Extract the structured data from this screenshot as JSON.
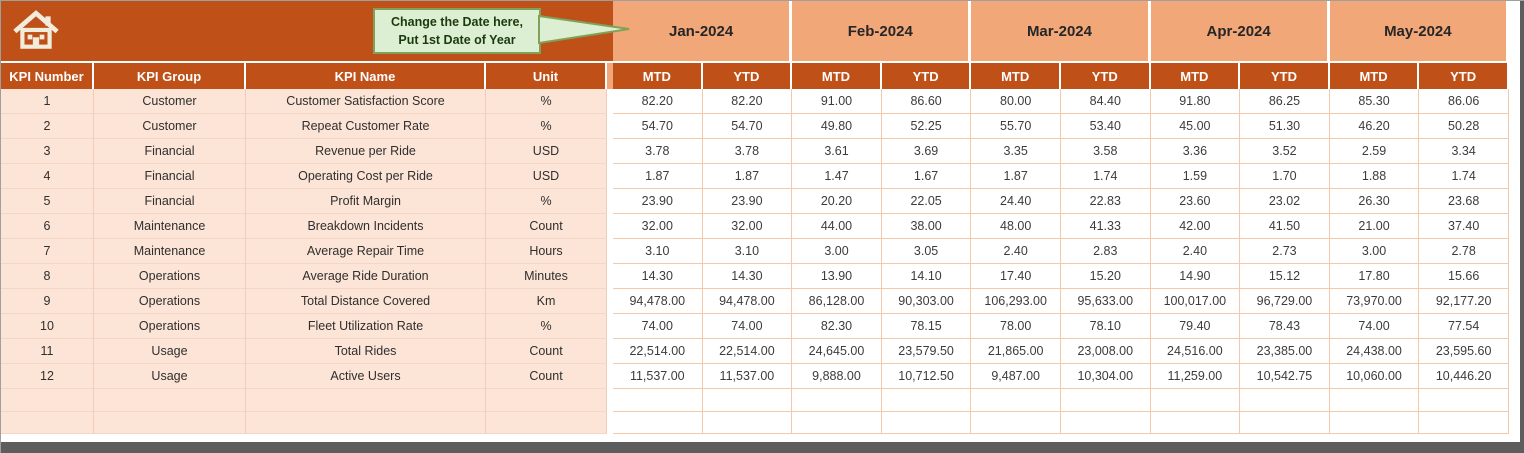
{
  "callout": {
    "line1": "Change the Date here,",
    "line2": "Put 1st Date of Year"
  },
  "months": [
    "Jan-2024",
    "Feb-2024",
    "Mar-2024",
    "Apr-2024",
    "May-2024"
  ],
  "sub_headers": [
    "MTD",
    "YTD"
  ],
  "columns": [
    "KPI Number",
    "KPI Group",
    "KPI Name",
    "Unit"
  ],
  "rows": [
    {
      "number": "1",
      "group": "Customer",
      "name": "Customer Satisfaction Score",
      "unit": "%",
      "values": [
        "82.20",
        "82.20",
        "91.00",
        "86.60",
        "80.00",
        "84.40",
        "91.80",
        "86.25",
        "85.30",
        "86.06"
      ]
    },
    {
      "number": "2",
      "group": "Customer",
      "name": "Repeat Customer Rate",
      "unit": "%",
      "values": [
        "54.70",
        "54.70",
        "49.80",
        "52.25",
        "55.70",
        "53.40",
        "45.00",
        "51.30",
        "46.20",
        "50.28"
      ]
    },
    {
      "number": "3",
      "group": "Financial",
      "name": "Revenue per Ride",
      "unit": "USD",
      "values": [
        "3.78",
        "3.78",
        "3.61",
        "3.69",
        "3.35",
        "3.58",
        "3.36",
        "3.52",
        "2.59",
        "3.34"
      ]
    },
    {
      "number": "4",
      "group": "Financial",
      "name": "Operating Cost per Ride",
      "unit": "USD",
      "values": [
        "1.87",
        "1.87",
        "1.47",
        "1.67",
        "1.87",
        "1.74",
        "1.59",
        "1.70",
        "1.88",
        "1.74"
      ]
    },
    {
      "number": "5",
      "group": "Financial",
      "name": "Profit Margin",
      "unit": "%",
      "values": [
        "23.90",
        "23.90",
        "20.20",
        "22.05",
        "24.40",
        "22.83",
        "23.60",
        "23.02",
        "26.30",
        "23.68"
      ]
    },
    {
      "number": "6",
      "group": "Maintenance",
      "name": "Breakdown Incidents",
      "unit": "Count",
      "values": [
        "32.00",
        "32.00",
        "44.00",
        "38.00",
        "48.00",
        "41.33",
        "42.00",
        "41.50",
        "21.00",
        "37.40"
      ]
    },
    {
      "number": "7",
      "group": "Maintenance",
      "name": "Average Repair Time",
      "unit": "Hours",
      "values": [
        "3.10",
        "3.10",
        "3.00",
        "3.05",
        "2.40",
        "2.83",
        "2.40",
        "2.73",
        "3.00",
        "2.78"
      ]
    },
    {
      "number": "8",
      "group": "Operations",
      "name": "Average Ride Duration",
      "unit": "Minutes",
      "values": [
        "14.30",
        "14.30",
        "13.90",
        "14.10",
        "17.40",
        "15.20",
        "14.90",
        "15.12",
        "17.80",
        "15.66"
      ]
    },
    {
      "number": "9",
      "group": "Operations",
      "name": "Total Distance Covered",
      "unit": "Km",
      "values": [
        "94,478.00",
        "94,478.00",
        "86,128.00",
        "90,303.00",
        "106,293.00",
        "95,633.00",
        "100,017.00",
        "96,729.00",
        "73,970.00",
        "92,177.20"
      ]
    },
    {
      "number": "10",
      "group": "Operations",
      "name": "Fleet Utilization Rate",
      "unit": "%",
      "values": [
        "74.00",
        "74.00",
        "82.30",
        "78.15",
        "78.00",
        "78.10",
        "79.40",
        "78.43",
        "74.00",
        "77.54"
      ]
    },
    {
      "number": "11",
      "group": "Usage",
      "name": "Total Rides",
      "unit": "Count",
      "values": [
        "22,514.00",
        "22,514.00",
        "24,645.00",
        "23,579.50",
        "21,865.00",
        "23,008.00",
        "24,516.00",
        "23,385.00",
        "24,438.00",
        "23,595.60"
      ]
    },
    {
      "number": "12",
      "group": "Usage",
      "name": "Active Users",
      "unit": "Count",
      "values": [
        "11,537.00",
        "11,537.00",
        "9,888.00",
        "10,712.50",
        "9,487.00",
        "10,304.00",
        "11,259.00",
        "10,542.75",
        "10,060.00",
        "10,446.20"
      ]
    }
  ],
  "empty_row_count": 2,
  "colors": {
    "rust": "#BF5018",
    "salmon": "#F2A779",
    "peach": "#FCE4D6",
    "grid_line": "#F3C9AC",
    "callout_bg": "#DCEFD2",
    "callout_border": "#7FA159",
    "edge_bar": "#5d5d5d"
  }
}
